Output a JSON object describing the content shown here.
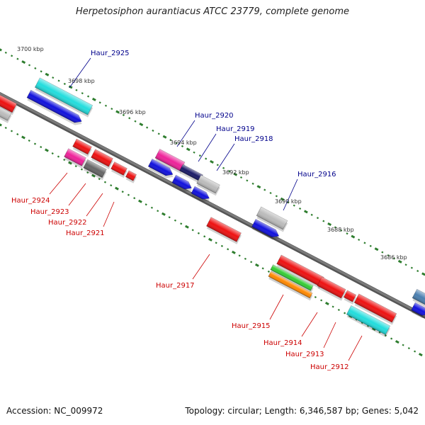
{
  "title": "Herpetosiphon aurantiacus ATCC 23779, complete genome",
  "footer": {
    "accession": "Accession: NC_009972",
    "summary": "Topology: circular; Length: 6,346,587 bp; Genes: 5,042"
  },
  "scale_labels": [
    "3700 kbp",
    "3698 kbp",
    "3696 kbp",
    "3694 kbp",
    "3692 kbp",
    "3690 kbp",
    "3688 kbp",
    "3686 kbp"
  ],
  "gene_labels": {
    "plus": [
      "Haur_2925",
      "Haur_2920",
      "Haur_2919",
      "Haur_2918",
      "Haur_2916"
    ],
    "minus": [
      "Haur_2924",
      "Haur_2923",
      "Haur_2922",
      "Haur_2921",
      "Haur_2917",
      "Haur_2915",
      "Haur_2914",
      "Haur_2913",
      "Haur_2912"
    ]
  },
  "colors": {
    "backbone": "#7a7a7a",
    "ticks": "#2e7d2e",
    "plus_label": "#00008b",
    "minus_label": "#cc0000",
    "red_feature": "#ee1111",
    "blue_feature": "#1111dd",
    "cyan_feature": "#22dddd",
    "magenta_feature": "#ee2299",
    "gray_feature": "#bbbbbb",
    "darkgray_feature": "#666666",
    "green_feature": "#33cc33",
    "orange_feature": "#ff8800",
    "navy_feature": "#1a1a66"
  }
}
